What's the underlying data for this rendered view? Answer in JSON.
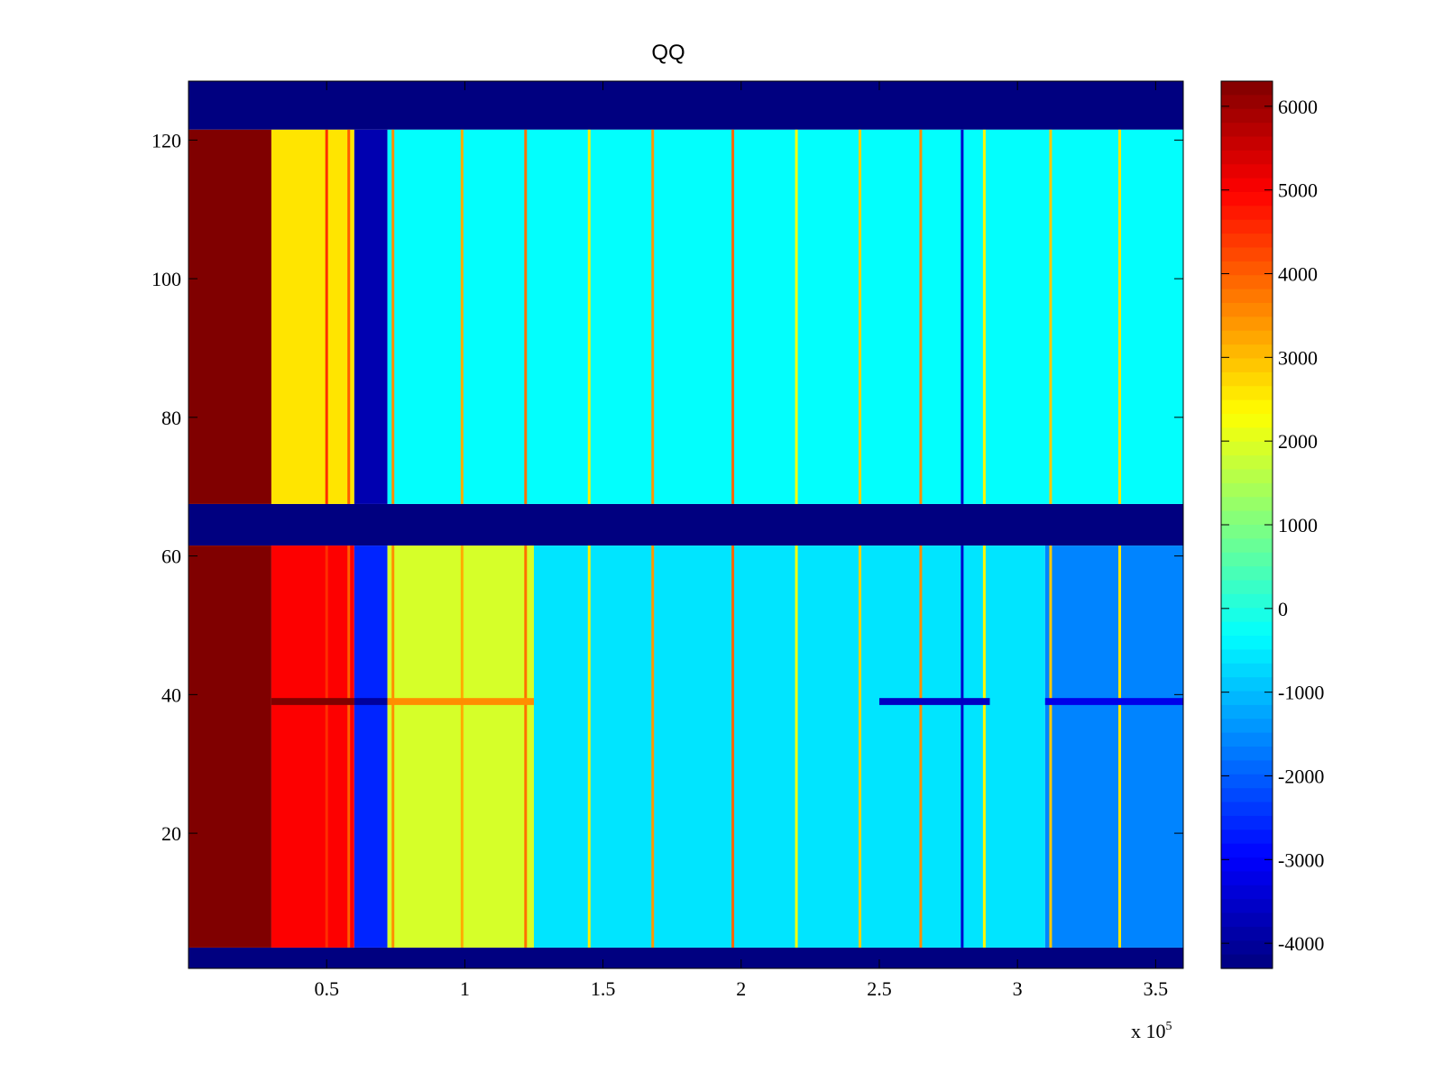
{
  "chart_data": {
    "type": "heatmap",
    "title": "QQ",
    "xlabel": "",
    "ylabel": "",
    "x_scale_label": {
      "base": "x 10",
      "exponent": "5"
    },
    "xlim": [
      0,
      3.6
    ],
    "ylim": [
      0.5,
      128.5
    ],
    "x_ticks": [
      {
        "value": 0.5,
        "label": "0.5"
      },
      {
        "value": 1,
        "label": "1"
      },
      {
        "value": 1.5,
        "label": "1.5"
      },
      {
        "value": 2,
        "label": "2"
      },
      {
        "value": 2.5,
        "label": "2.5"
      },
      {
        "value": 3,
        "label": "3"
      },
      {
        "value": 3.5,
        "label": "3.5"
      }
    ],
    "y_ticks": [
      {
        "value": 20,
        "label": "20"
      },
      {
        "value": 40,
        "label": "40"
      },
      {
        "value": 60,
        "label": "60"
      },
      {
        "value": 80,
        "label": "80"
      },
      {
        "value": 100,
        "label": "100"
      },
      {
        "value": 120,
        "label": "120"
      }
    ],
    "colorbar": {
      "colormap": "jet",
      "clim": [
        -4300,
        6300
      ],
      "ticks": [
        {
          "value": 6000,
          "label": "6000"
        },
        {
          "value": 5000,
          "label": "5000"
        },
        {
          "value": 4000,
          "label": "4000"
        },
        {
          "value": 3000,
          "label": "3000"
        },
        {
          "value": 2000,
          "label": "2000"
        },
        {
          "value": 1000,
          "label": "1000"
        },
        {
          "value": 0,
          "label": "0"
        },
        {
          "value": -1000,
          "label": "-1000"
        },
        {
          "value": -2000,
          "label": "-2000"
        },
        {
          "value": -3000,
          "label": "-3000"
        },
        {
          "value": -4000,
          "label": "-4000"
        }
      ]
    },
    "empty_row_bands": [
      {
        "y_range": [
          121.5,
          128.5
        ],
        "value": -4300
      },
      {
        "y_range": [
          61.5,
          67.5
        ],
        "value": -4300
      },
      {
        "y_range": [
          0.5,
          3.5
        ],
        "value": -4300
      }
    ],
    "data_blocks": [
      {
        "y_range": [
          67.5,
          121.5
        ],
        "profile": "upper"
      },
      {
        "y_range": [
          3.5,
          61.5
        ],
        "profile": "lower"
      }
    ],
    "column_profile_upper": [
      {
        "x_range": [
          0,
          0.3
        ],
        "value": 6300
      },
      {
        "x_range": [
          0.3,
          0.6
        ],
        "value": 2600
      },
      {
        "x_range": [
          0.6,
          0.72
        ],
        "value": -3800
      },
      {
        "x_range": [
          0.72,
          3.6
        ],
        "value": -300
      }
    ],
    "column_profile_lower": [
      {
        "x_range": [
          0,
          0.3
        ],
        "value": 6300
      },
      {
        "x_range": [
          0.3,
          0.6
        ],
        "value": 5000
      },
      {
        "x_range": [
          0.6,
          0.72
        ],
        "value": -2600
      },
      {
        "x_range": [
          0.72,
          1.25
        ],
        "value": 1900
      },
      {
        "x_range": [
          1.25,
          3.1
        ],
        "value": -600
      },
      {
        "x_range": [
          3.1,
          3.6
        ],
        "value": -1600
      }
    ],
    "vertical_stripes": [
      {
        "x": 0.5,
        "value": 4500
      },
      {
        "x": 0.58,
        "value": 4000
      },
      {
        "x": 0.74,
        "value": 3500
      },
      {
        "x": 0.99,
        "value": 3200
      },
      {
        "x": 1.22,
        "value": 3800
      },
      {
        "x": 1.45,
        "value": 2500
      },
      {
        "x": 1.68,
        "value": 3400
      },
      {
        "x": 1.97,
        "value": 3900
      },
      {
        "x": 2.2,
        "value": 2300
      },
      {
        "x": 2.43,
        "value": 2800
      },
      {
        "x": 2.65,
        "value": 3500
      },
      {
        "x": 2.8,
        "value": -3500
      },
      {
        "x": 2.88,
        "value": 2400
      },
      {
        "x": 3.12,
        "value": 2900
      },
      {
        "x": 3.37,
        "value": 2600
      }
    ],
    "row_anomaly": {
      "y": 39,
      "values": [
        {
          "x_range": [
            0.3,
            0.6
          ],
          "value": 6300
        },
        {
          "x_range": [
            0.6,
            0.72
          ],
          "value": -4000
        },
        {
          "x_range": [
            0.72,
            1.25
          ],
          "value": 3500
        },
        {
          "x_range": [
            2.5,
            2.9
          ],
          "value": -3600
        },
        {
          "x_range": [
            3.1,
            3.6
          ],
          "value": -3200
        }
      ]
    }
  }
}
